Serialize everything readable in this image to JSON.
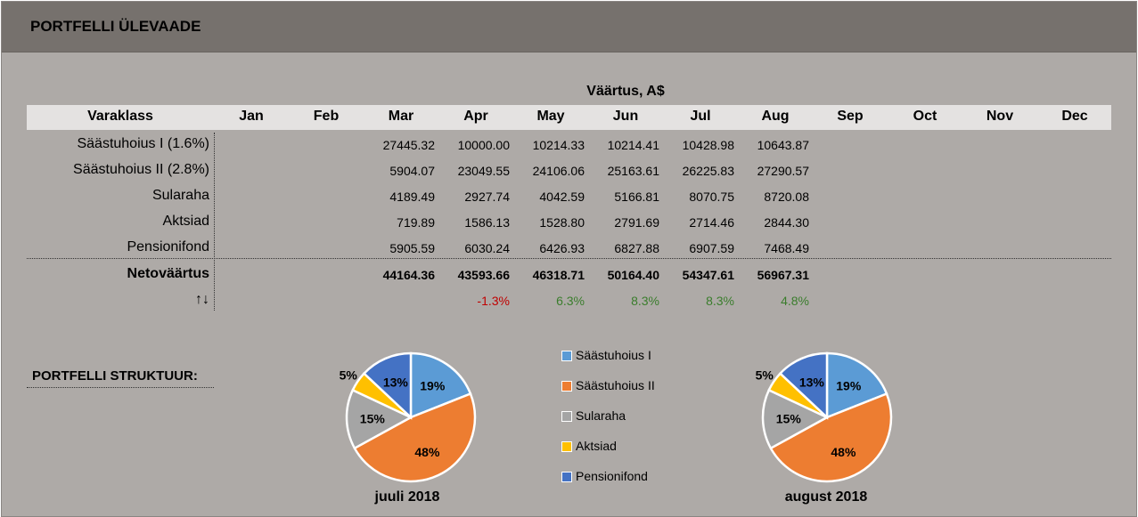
{
  "title": "PORTFELLI ÜLEVAADE",
  "value_heading": "Väärtus, A$",
  "header": {
    "first": "Varaklass",
    "months": [
      "Jan",
      "Feb",
      "Mar",
      "Apr",
      "May",
      "Jun",
      "Jul",
      "Aug",
      "Sep",
      "Oct",
      "Nov",
      "Dec"
    ]
  },
  "rows": [
    {
      "label": "Säästuhoius I (1.6%)",
      "values": [
        "",
        "",
        "27445.32",
        "10000.00",
        "10214.33",
        "10214.41",
        "10428.98",
        "10643.87",
        "",
        "",
        "",
        ""
      ]
    },
    {
      "label": "Säästuhoius II (2.8%)",
      "values": [
        "",
        "",
        "5904.07",
        "23049.55",
        "24106.06",
        "25163.61",
        "26225.83",
        "27290.57",
        "",
        "",
        "",
        ""
      ]
    },
    {
      "label": "Sularaha",
      "values": [
        "",
        "",
        "4189.49",
        "2927.74",
        "4042.59",
        "5166.81",
        "8070.75",
        "8720.08",
        "",
        "",
        "",
        ""
      ]
    },
    {
      "label": "Aktsiad",
      "values": [
        "",
        "",
        "719.89",
        "1586.13",
        "1528.80",
        "2791.69",
        "2714.46",
        "2844.30",
        "",
        "",
        "",
        ""
      ]
    },
    {
      "label": "Pensionifond",
      "values": [
        "",
        "",
        "5905.59",
        "6030.24",
        "6426.93",
        "6827.88",
        "6907.59",
        "7468.49",
        "",
        "",
        "",
        ""
      ]
    }
  ],
  "net": {
    "label": "Netoväärtus",
    "values": [
      "",
      "",
      "44164.36",
      "43593.66",
      "46318.71",
      "50164.40",
      "54347.61",
      "56967.31",
      "",
      "",
      "",
      ""
    ]
  },
  "change": {
    "label": "↑↓",
    "values": [
      "",
      "",
      "",
      "-1.3%",
      "6.3%",
      "8.3%",
      "8.3%",
      "4.8%",
      "",
      "",
      "",
      ""
    ]
  },
  "colors": {
    "negative": "#c00000",
    "positive": "#3a7d2c"
  },
  "structure_label": "PORTFELLI STRUKTUUR:",
  "chart_data": [
    {
      "type": "pie",
      "title": "juuli 2018",
      "categories": [
        "Säästuhoius I",
        "Säästuhoius II",
        "Sularaha",
        "Aktsiad",
        "Pensionifond"
      ],
      "values": [
        19,
        48,
        15,
        5,
        13
      ],
      "labels": [
        "19%",
        "48%",
        "15%",
        "5%",
        "13%"
      ],
      "colors": [
        "#5b9bd5",
        "#ed7d31",
        "#a5a5a5",
        "#ffc000",
        "#4472c4"
      ]
    },
    {
      "type": "pie",
      "title": "august 2018",
      "categories": [
        "Säästuhoius I",
        "Säästuhoius II",
        "Sularaha",
        "Aktsiad",
        "Pensionifond"
      ],
      "values": [
        19,
        48,
        15,
        5,
        13
      ],
      "labels": [
        "19%",
        "48%",
        "15%",
        "5%",
        "13%"
      ],
      "colors": [
        "#5b9bd5",
        "#ed7d31",
        "#a5a5a5",
        "#ffc000",
        "#4472c4"
      ]
    }
  ],
  "legend": [
    {
      "label": "Säästuhoius I",
      "color": "#5b9bd5"
    },
    {
      "label": "Säästuhoius II",
      "color": "#ed7d31"
    },
    {
      "label": "Sularaha",
      "color": "#a5a5a5"
    },
    {
      "label": "Aktsiad",
      "color": "#ffc000"
    },
    {
      "label": "Pensionifond",
      "color": "#4472c4"
    }
  ]
}
